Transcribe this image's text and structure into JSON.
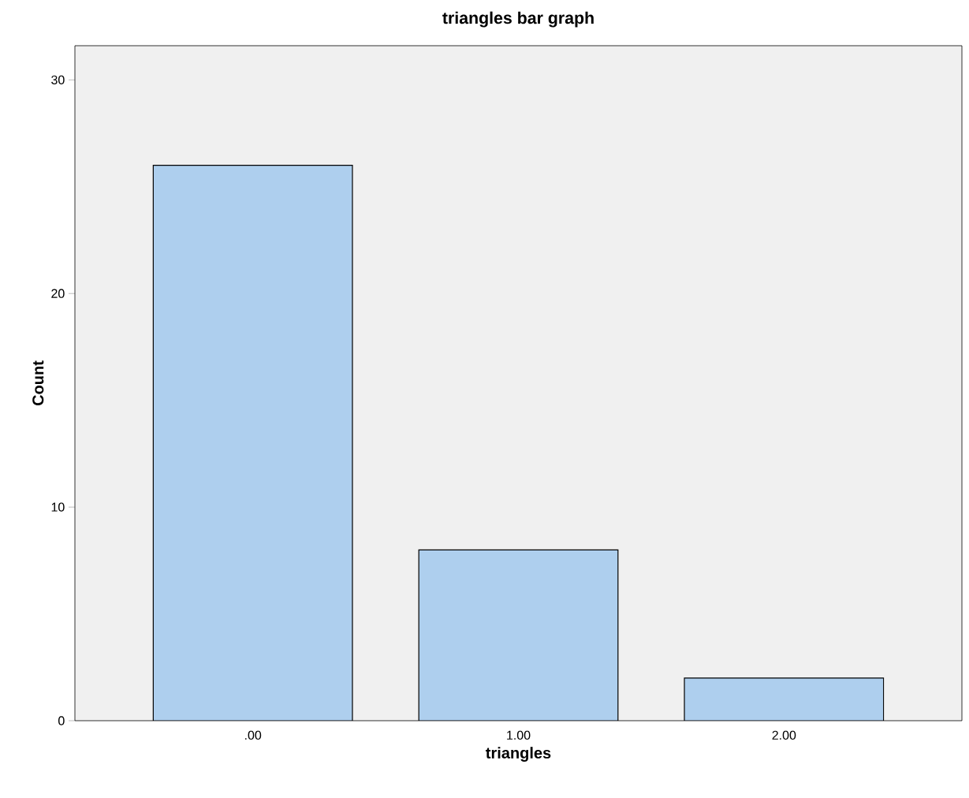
{
  "chart_data": {
    "type": "bar",
    "title": "triangles bar graph",
    "xlabel": "triangles",
    "ylabel": "Count",
    "categories": [
      ".00",
      "1.00",
      "2.00"
    ],
    "values": [
      26,
      8,
      2
    ],
    "color": "#aecfee",
    "ylim": [
      0,
      31.6
    ],
    "yticks": [
      0,
      10,
      20,
      30
    ]
  }
}
